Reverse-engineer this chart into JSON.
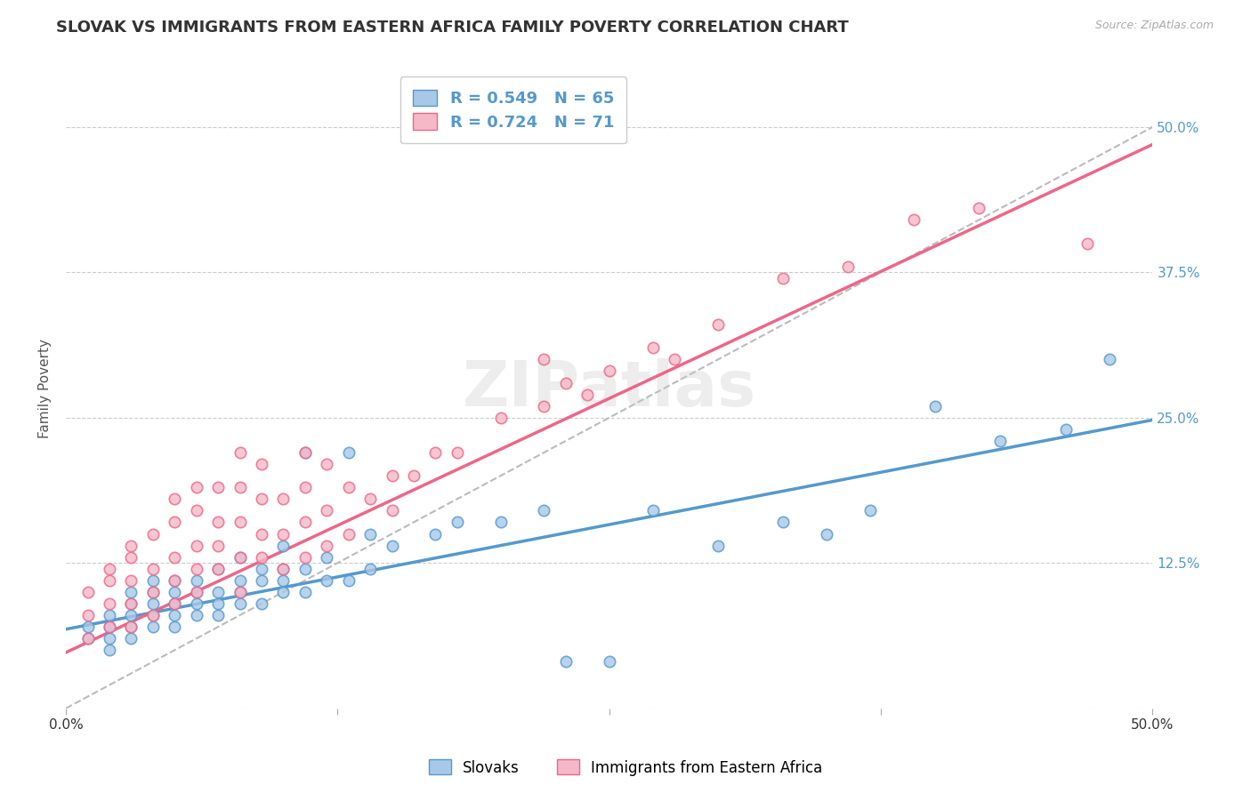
{
  "title": "SLOVAK VS IMMIGRANTS FROM EASTERN AFRICA FAMILY POVERTY CORRELATION CHART",
  "source": "Source: ZipAtlas.com",
  "ylabel": "Family Poverty",
  "xlim": [
    0.0,
    0.5
  ],
  "ylim": [
    0.0,
    0.55
  ],
  "yticks": [
    0.0,
    0.125,
    0.25,
    0.375,
    0.5
  ],
  "ytick_labels": [
    "",
    "12.5%",
    "25.0%",
    "37.5%",
    "50.0%"
  ],
  "xticks": [
    0.0,
    0.125,
    0.25,
    0.375,
    0.5
  ],
  "xtick_labels": [
    "0.0%",
    "",
    "",
    "",
    "50.0%"
  ],
  "blue_R": 0.549,
  "blue_N": 65,
  "pink_R": 0.724,
  "pink_N": 71,
  "blue_color": "#a8c8e8",
  "pink_color": "#f4b8c8",
  "blue_line_color": "#5599cc",
  "pink_line_color": "#ee6688",
  "legend_label_blue": "Slovaks",
  "legend_label_pink": "Immigrants from Eastern Africa",
  "blue_trend_x0": 0.0,
  "blue_trend_y0": 0.068,
  "blue_trend_x1": 0.5,
  "blue_trend_y1": 0.248,
  "pink_trend_x0": 0.0,
  "pink_trend_y0": 0.048,
  "pink_trend_x1": 0.5,
  "pink_trend_y1": 0.485,
  "blue_scatter_x": [
    0.01,
    0.01,
    0.02,
    0.02,
    0.02,
    0.02,
    0.03,
    0.03,
    0.03,
    0.03,
    0.03,
    0.04,
    0.04,
    0.04,
    0.04,
    0.04,
    0.05,
    0.05,
    0.05,
    0.05,
    0.05,
    0.06,
    0.06,
    0.06,
    0.06,
    0.07,
    0.07,
    0.07,
    0.07,
    0.08,
    0.08,
    0.08,
    0.08,
    0.09,
    0.09,
    0.09,
    0.1,
    0.1,
    0.1,
    0.1,
    0.11,
    0.11,
    0.11,
    0.12,
    0.12,
    0.13,
    0.13,
    0.14,
    0.14,
    0.15,
    0.17,
    0.18,
    0.2,
    0.22,
    0.23,
    0.25,
    0.27,
    0.3,
    0.33,
    0.35,
    0.37,
    0.4,
    0.43,
    0.46,
    0.48
  ],
  "blue_scatter_y": [
    0.06,
    0.07,
    0.05,
    0.06,
    0.07,
    0.08,
    0.06,
    0.07,
    0.08,
    0.09,
    0.1,
    0.07,
    0.08,
    0.09,
    0.1,
    0.11,
    0.07,
    0.08,
    0.09,
    0.1,
    0.11,
    0.08,
    0.09,
    0.1,
    0.11,
    0.08,
    0.09,
    0.1,
    0.12,
    0.09,
    0.1,
    0.11,
    0.13,
    0.09,
    0.11,
    0.12,
    0.1,
    0.11,
    0.12,
    0.14,
    0.1,
    0.12,
    0.22,
    0.11,
    0.13,
    0.11,
    0.22,
    0.12,
    0.15,
    0.14,
    0.15,
    0.16,
    0.16,
    0.17,
    0.04,
    0.04,
    0.17,
    0.14,
    0.16,
    0.15,
    0.17,
    0.26,
    0.23,
    0.24,
    0.3
  ],
  "pink_scatter_x": [
    0.01,
    0.01,
    0.01,
    0.02,
    0.02,
    0.02,
    0.02,
    0.03,
    0.03,
    0.03,
    0.03,
    0.03,
    0.04,
    0.04,
    0.04,
    0.04,
    0.05,
    0.05,
    0.05,
    0.05,
    0.05,
    0.06,
    0.06,
    0.06,
    0.06,
    0.06,
    0.07,
    0.07,
    0.07,
    0.07,
    0.08,
    0.08,
    0.08,
    0.08,
    0.08,
    0.09,
    0.09,
    0.09,
    0.09,
    0.1,
    0.1,
    0.1,
    0.11,
    0.11,
    0.11,
    0.11,
    0.12,
    0.12,
    0.12,
    0.13,
    0.13,
    0.14,
    0.15,
    0.15,
    0.16,
    0.17,
    0.18,
    0.2,
    0.22,
    0.22,
    0.23,
    0.24,
    0.25,
    0.27,
    0.28,
    0.3,
    0.33,
    0.36,
    0.39,
    0.42,
    0.47
  ],
  "pink_scatter_y": [
    0.06,
    0.08,
    0.1,
    0.07,
    0.09,
    0.11,
    0.12,
    0.07,
    0.09,
    0.11,
    0.13,
    0.14,
    0.08,
    0.1,
    0.12,
    0.15,
    0.09,
    0.11,
    0.13,
    0.16,
    0.18,
    0.1,
    0.12,
    0.14,
    0.17,
    0.19,
    0.12,
    0.14,
    0.16,
    0.19,
    0.1,
    0.13,
    0.16,
    0.19,
    0.22,
    0.13,
    0.15,
    0.18,
    0.21,
    0.12,
    0.15,
    0.18,
    0.13,
    0.16,
    0.19,
    0.22,
    0.14,
    0.17,
    0.21,
    0.15,
    0.19,
    0.18,
    0.17,
    0.2,
    0.2,
    0.22,
    0.22,
    0.25,
    0.26,
    0.3,
    0.28,
    0.27,
    0.29,
    0.31,
    0.3,
    0.33,
    0.37,
    0.38,
    0.42,
    0.43,
    0.4
  ],
  "grid_color": "#cccccc",
  "bg_color": "#ffffff",
  "title_fontsize": 13,
  "axis_fontsize": 11,
  "tick_fontsize": 11,
  "source_fontsize": 9
}
